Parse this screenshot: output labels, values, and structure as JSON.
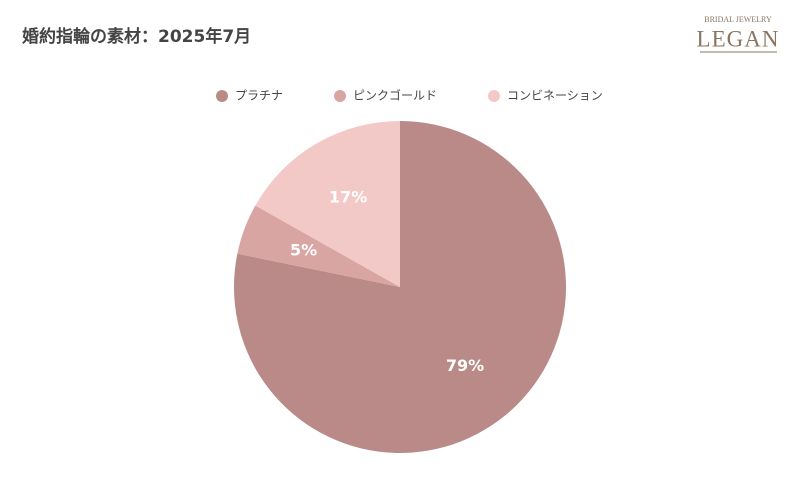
{
  "chart_data": {
    "type": "pie",
    "title": "婚約指輪の素材：2025年7月",
    "categories": [
      "プラチナ",
      "ピンクゴールド",
      "コンビネーション"
    ],
    "values": [
      79,
      5,
      17
    ],
    "value_labels": [
      "79%",
      "5%",
      "17%"
    ],
    "colors": [
      "#b98a87",
      "#d9a5a3",
      "#f3c9c8"
    ],
    "legend": "top"
  },
  "logo": {
    "tagline": "BRIDAL JEWELRY",
    "name": "LEGAN"
  }
}
